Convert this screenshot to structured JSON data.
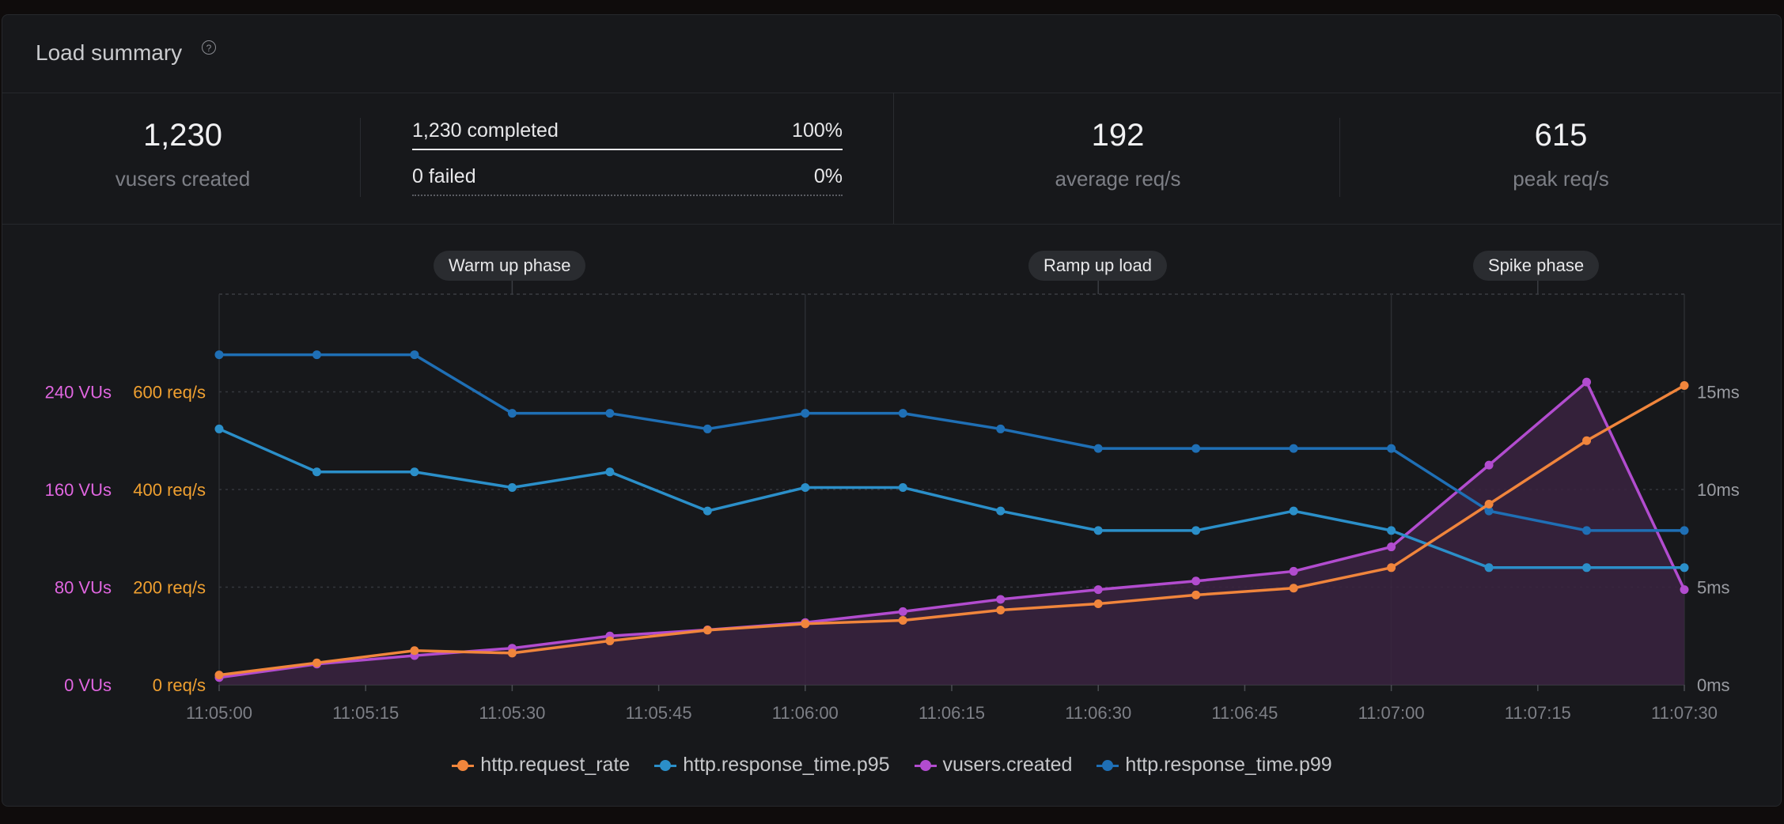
{
  "header": {
    "title": "Load summary",
    "help_icon": "help-circle-icon"
  },
  "stats": {
    "vusers_created": {
      "value": "1,230",
      "label": "vusers created"
    },
    "completed": {
      "label": "1,230 completed",
      "pct": "100%"
    },
    "failed": {
      "label": "0 failed",
      "pct": "0%"
    },
    "avg_rps": {
      "value": "192",
      "label": "average req/s"
    },
    "peak_rps": {
      "value": "615",
      "label": "peak req/s"
    }
  },
  "phases": [
    "Warm up phase",
    "Ramp up load",
    "Spike phase"
  ],
  "colors": {
    "orange": "#f0853c",
    "blue": "#2b8fc9",
    "purple": "#b24ccf",
    "purple_fill": "#3a2340",
    "vu_axis": "#e066e0",
    "req_axis": "#f0a030"
  },
  "chart_data": {
    "type": "line",
    "x": [
      "11:05:00",
      "11:05:10",
      "11:05:20",
      "11:05:30",
      "11:05:40",
      "11:05:50",
      "11:06:00",
      "11:06:10",
      "11:06:20",
      "11:06:30",
      "11:06:40",
      "11:06:50",
      "11:07:00",
      "11:07:10",
      "11:07:20",
      "11:07:30"
    ],
    "x_ticks": [
      "11:05:00",
      "11:05:15",
      "11:05:30",
      "11:05:45",
      "11:06:00",
      "11:06:15",
      "11:06:30",
      "11:06:45",
      "11:07:00",
      "11:07:15",
      "11:07:30"
    ],
    "phase_boundaries": [
      "11:05:00",
      "11:06:00",
      "11:07:00",
      "11:07:30"
    ],
    "axes": {
      "vusers": {
        "range": [
          0,
          320
        ],
        "ticks": [
          "0 VUs",
          "80 VUs",
          "160 VUs",
          "240 VUs"
        ],
        "values": [
          0,
          80,
          160,
          240
        ]
      },
      "req_rate": {
        "range": [
          0,
          800
        ],
        "ticks": [
          "0 req/s",
          "200 req/s",
          "400 req/s",
          "600 req/s"
        ],
        "values": [
          0,
          200,
          400,
          600
        ]
      },
      "response_time": {
        "range": [
          0,
          20
        ],
        "ticks": [
          "0ms",
          "5ms",
          "10ms",
          "15ms"
        ],
        "values": [
          0,
          5,
          10,
          15
        ]
      }
    },
    "series": [
      {
        "name": "http.request_rate",
        "axis": "req_rate",
        "color": "#f0853c",
        "values": [
          20,
          45,
          70,
          65,
          90,
          112,
          125,
          132,
          153,
          166,
          184,
          198,
          240,
          370,
          500,
          613
        ]
      },
      {
        "name": "http.response_time.p95",
        "axis": "response_time",
        "color": "#2b8fc9",
        "values": [
          13.1,
          10.9,
          10.9,
          10.1,
          10.9,
          8.9,
          10.1,
          10.1,
          8.9,
          7.9,
          7.9,
          8.9,
          7.9,
          6.0,
          6.0,
          6.0
        ]
      },
      {
        "name": "vusers.created",
        "axis": "vusers",
        "color": "#b24ccf",
        "area": true,
        "values": [
          6,
          17,
          24,
          30,
          40,
          45,
          51,
          60,
          70,
          78,
          85,
          93,
          113,
          180,
          248,
          78
        ]
      },
      {
        "name": "http.response_time.p99",
        "axis": "response_time",
        "color": "#1f6fb5",
        "values": [
          16.9,
          16.9,
          16.9,
          13.9,
          13.9,
          13.1,
          13.9,
          13.9,
          13.1,
          12.1,
          12.1,
          12.1,
          12.1,
          8.9,
          7.9,
          7.9
        ]
      }
    ]
  }
}
